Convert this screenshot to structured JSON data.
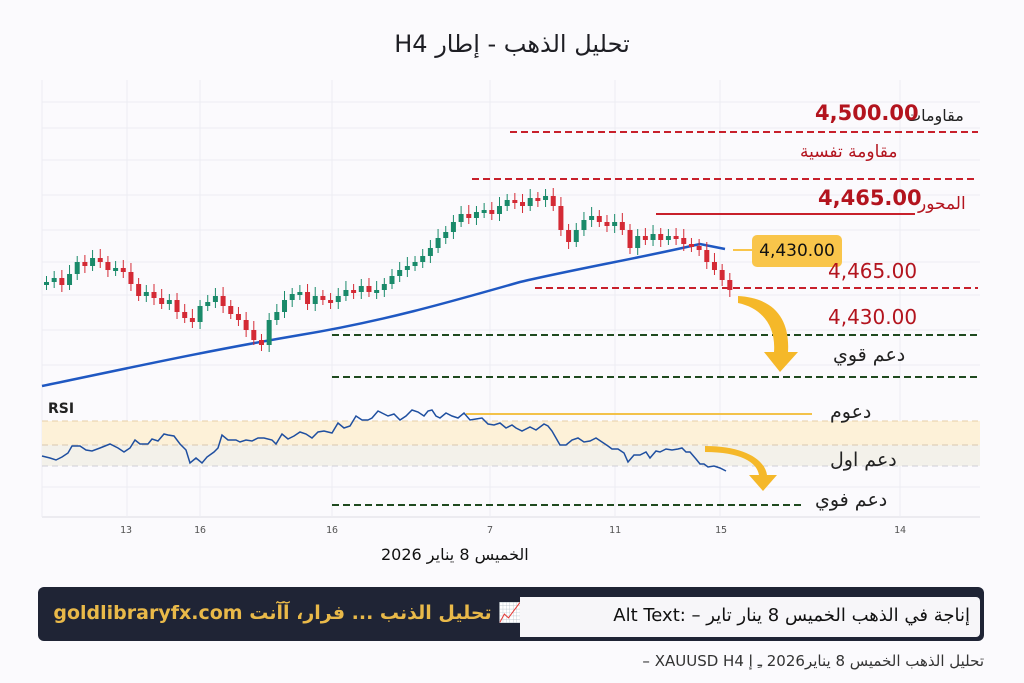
{
  "title": "تحليل الذهب - إطار H4",
  "levels": {
    "resistance_label": "مقاومات",
    "resistance_value": "4,500.00",
    "psych_resistance_label": "مقاومة تفسية",
    "pivot_label": "المحور",
    "pivot_value": "4,465.00",
    "current_tag": "4,430.00",
    "level_465": "4,465.00",
    "level_430": "4,430.00",
    "strong_support": "دعم قوي"
  },
  "rsi": {
    "label": "RSI",
    "supports_label": "دعوم",
    "first_support": "دعم اول",
    "strong_support": "دعم فوي"
  },
  "x_ticks": [
    "13",
    "16",
    "16",
    "7",
    "11",
    "15",
    "14"
  ],
  "date_label": "الخميس 8 يناير 2026",
  "banner": {
    "text": "تحليل الذنب ... فرار، آآنت goldlibraryfx.com",
    "icon": "chart-up-icon"
  },
  "alt_text": "إناجة في الذهب الخميس 8 ينار تاير – :Alt Text",
  "caption": "تحليل الذهب الخميس 8 يناير2026 ـِ إ XAUUSD H4 –",
  "colors": {
    "bull": "#1a8a6a",
    "bear": "#d42a35",
    "ma": "#1f58c2",
    "resistance": "#b3141e",
    "support": "#1f4a1f",
    "accent": "#f9c54a",
    "banner_bg": "#1f2435",
    "banner_text": "#e9b949"
  },
  "chart_data": {
    "type": "candlestick",
    "title": "تحليل الذهب - إطار H4",
    "symbol": "XAUUSD",
    "timeframe": "H4",
    "x_ticks": [
      "13",
      "16",
      "16",
      "7",
      "11",
      "15",
      "14"
    ],
    "horizontal_levels": [
      {
        "label": "مقاومات",
        "value": 4500.0,
        "style": "dashed",
        "color": "#b3141e"
      },
      {
        "label": "مقاومة تفسية",
        "style": "dashed",
        "color": "#b3141e"
      },
      {
        "label": "المحور",
        "value": 4465.0,
        "style": "solid",
        "color": "#b3141e"
      },
      {
        "label": "",
        "value": 4465.0,
        "style": "dashed",
        "color": "#b3141e"
      },
      {
        "label": "",
        "value": 4430.0,
        "style": "dashed",
        "color": "#1f4a1f"
      },
      {
        "label": "دعم قوي",
        "style": "dashed",
        "color": "#1f4a1f"
      }
    ],
    "current_price": 4430.0,
    "moving_average": "rising blue MA from lower-left to ~4,430 area then flattening",
    "rsi": {
      "bands": [
        "دعوم",
        "دعم اول",
        "دعم فوي"
      ],
      "trend": "rising then falling toward lower band at end"
    }
  }
}
